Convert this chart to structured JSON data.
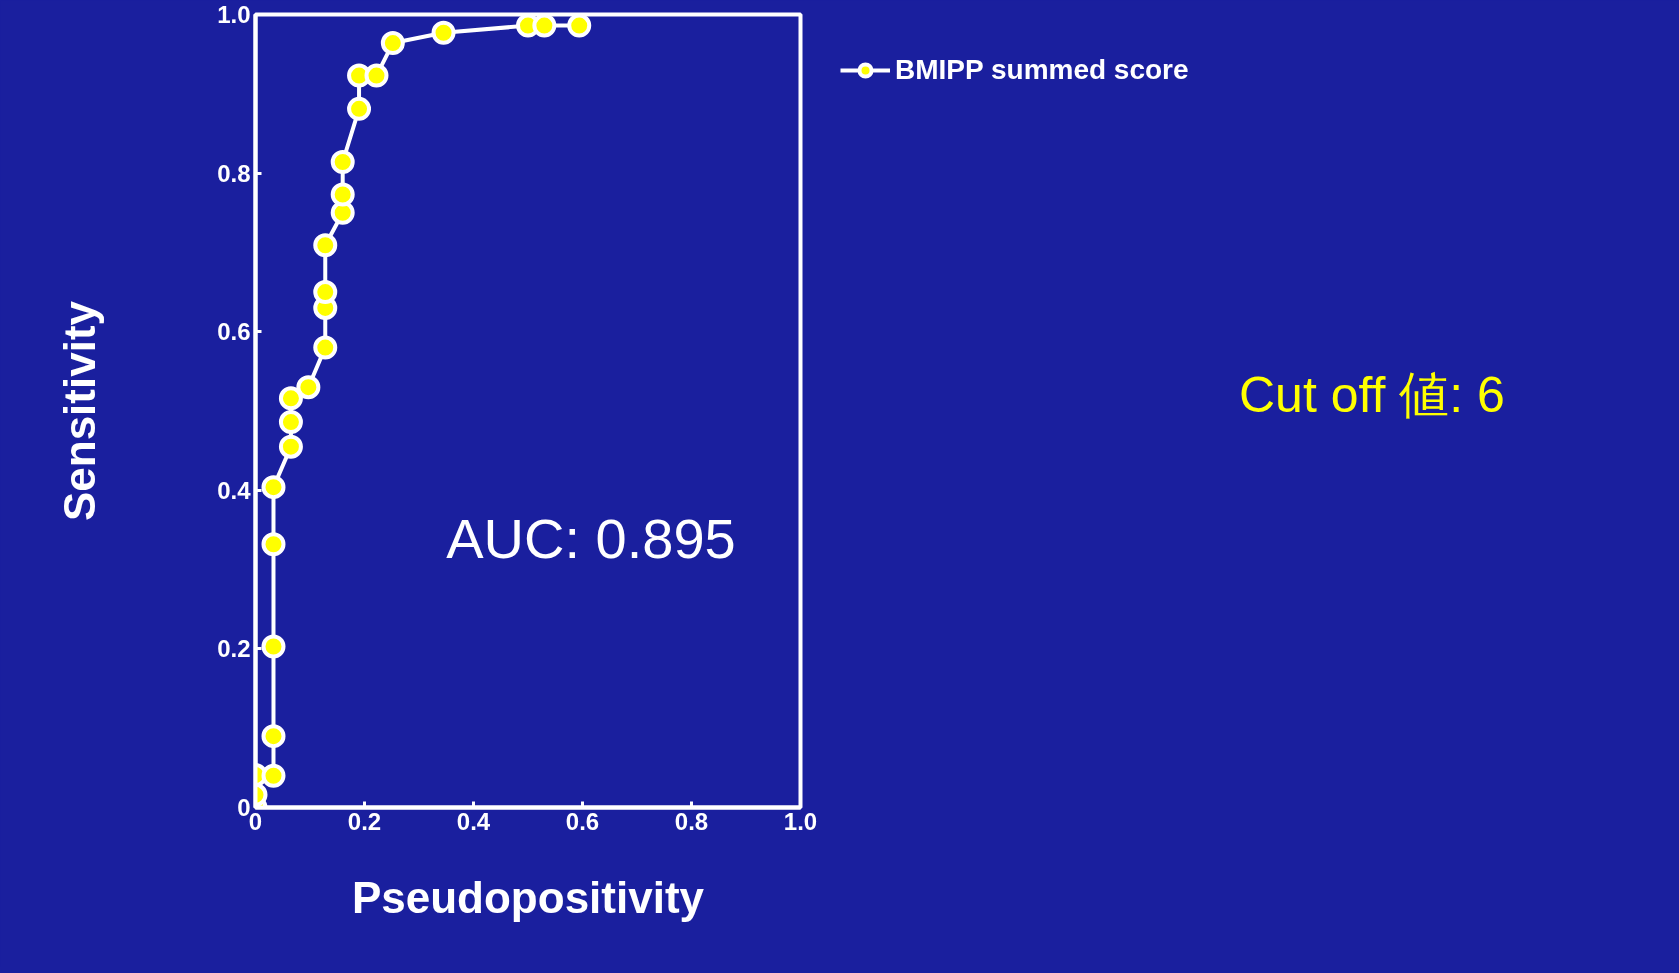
{
  "chart_data": {
    "type": "line",
    "xlabel": "Pseudopositivity",
    "ylabel": "Sensitivity",
    "x": [
      0.0,
      0.0,
      0.0,
      0.033,
      0.033,
      0.033,
      0.033,
      0.033,
      0.065,
      0.065,
      0.065,
      0.097,
      0.128,
      0.128,
      0.128,
      0.128,
      0.16,
      0.16,
      0.16,
      0.19,
      0.19,
      0.222,
      0.252,
      0.345,
      0.5,
      0.53,
      0.594
    ],
    "series": [
      {
        "name": "BMIPP summed score",
        "color": "#ffffff",
        "values": [
          0.0,
          0.016,
          0.041,
          0.04,
          0.09,
          0.203,
          0.332,
          0.404,
          0.455,
          0.486,
          0.516,
          0.53,
          0.58,
          0.63,
          0.65,
          0.709,
          0.75,
          0.773,
          0.814,
          0.881,
          0.923,
          0.923,
          0.964,
          0.977,
          0.986,
          0.986,
          0.986
        ]
      }
    ],
    "marker": "circle",
    "line_style": "solid",
    "legend": "top right",
    "grid": false,
    "xlim": [
      0,
      1
    ],
    "ylim": [
      0,
      1
    ],
    "xticks": [
      {
        "value": 0,
        "label": "0"
      },
      0.2,
      0.4,
      0.6,
      0.8,
      {
        "value": 1,
        "label": "1.0"
      }
    ],
    "yticks": [
      {
        "value": 0,
        "label": "0"
      },
      0.2,
      0.4,
      0.6,
      0.8,
      {
        "value": 1,
        "label": "1.0"
      }
    ],
    "annotations": [
      "AUC: 0.895",
      "Cut off 値: 6"
    ]
  }
}
